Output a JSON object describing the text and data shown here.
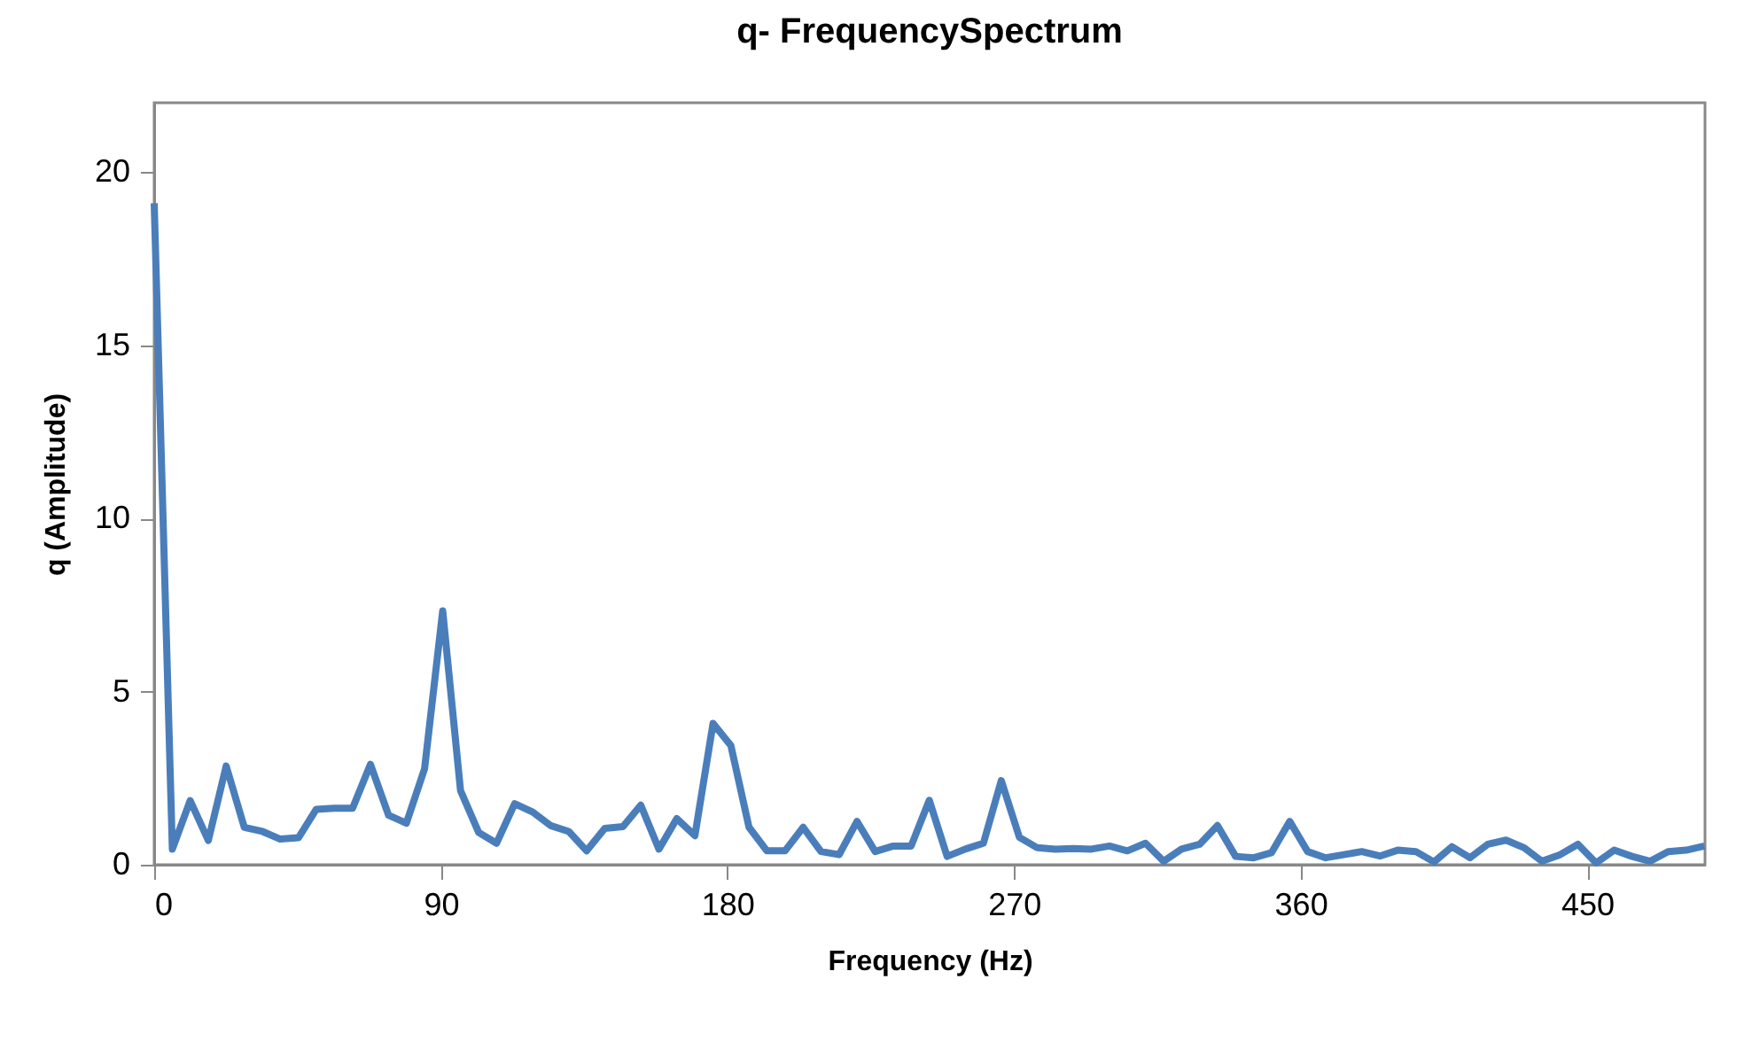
{
  "chart_data": {
    "type": "line",
    "title": "q- FrequencySpectrum",
    "xlabel": "Frequency (Hz)",
    "ylabel": "q (Amplitude)",
    "x": [
      0,
      5.7,
      11.3,
      17.0,
      22.6,
      28.3,
      34.0,
      39.6,
      45.3,
      50.9,
      56.6,
      62.3,
      67.9,
      73.6,
      79.2,
      84.9,
      90.6,
      96.2,
      101.9,
      107.5,
      113.2,
      118.9,
      124.5,
      130.2,
      135.8,
      141.5,
      147.2,
      152.8,
      158.5,
      164.1,
      169.8,
      175.5,
      181.1,
      186.8,
      192.4,
      198.1,
      203.8,
      209.4,
      215.1,
      220.7,
      226.4,
      232.1,
      237.7,
      243.4,
      249.0,
      254.7,
      260.4,
      266.0,
      271.7,
      277.3,
      283.0,
      288.7,
      294.3,
      300.0,
      305.6,
      311.3,
      317.0,
      322.6,
      328.3,
      333.9,
      339.6,
      345.3,
      350.9,
      356.6,
      362.2,
      367.9,
      373.6,
      379.2,
      384.9,
      390.5,
      396.2,
      401.9,
      407.5,
      413.2,
      418.8,
      424.5,
      430.2,
      435.8,
      441.5,
      447.1,
      452.8,
      458.5,
      464.1,
      469.8,
      475.4,
      481.1,
      486.8
    ],
    "series": [
      {
        "color": "#4a7ebb",
        "values": [
          19.1,
          0.45,
          1.85,
          0.7,
          2.85,
          1.08,
          0.96,
          0.74,
          0.78,
          1.6,
          1.63,
          1.63,
          2.9,
          1.43,
          1.2,
          2.77,
          7.33,
          2.14,
          0.93,
          0.62,
          1.76,
          1.52,
          1.13,
          0.96,
          0.4,
          1.05,
          1.1,
          1.72,
          0.45,
          1.33,
          0.84,
          4.08,
          3.44,
          1.08,
          0.4,
          0.4,
          1.08,
          0.38,
          0.29,
          1.25,
          0.38,
          0.54,
          0.54,
          1.86,
          0.24,
          0.45,
          0.62,
          2.43,
          0.79,
          0.49,
          0.45,
          0.47,
          0.45,
          0.54,
          0.4,
          0.62,
          0.1,
          0.45,
          0.59,
          1.13,
          0.24,
          0.2,
          0.35,
          1.25,
          0.38,
          0.2,
          0.29,
          0.38,
          0.25,
          0.42,
          0.38,
          0.08,
          0.52,
          0.2,
          0.59,
          0.71,
          0.49,
          0.1,
          0.29,
          0.59,
          0.05,
          0.42,
          0.24,
          0.1,
          0.38,
          0.42,
          0.54
        ]
      }
    ],
    "xlim": [
      0,
      487
    ],
    "xticks": [
      0,
      90,
      180,
      270,
      360,
      450
    ],
    "ylim": [
      0,
      22
    ],
    "yticks": [
      0,
      5,
      10,
      15,
      20
    ],
    "grid": false,
    "legend": false,
    "marker": "none",
    "line_style": "solid"
  }
}
